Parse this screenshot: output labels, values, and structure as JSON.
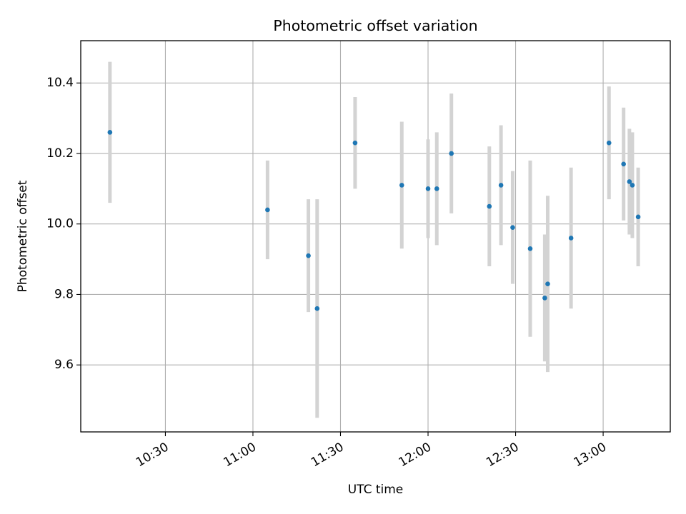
{
  "chart_data": {
    "type": "scatter",
    "title": "Photometric offset variation",
    "xlabel": "UTC time",
    "ylabel": "Photometric offset",
    "x_is_time": true,
    "xlim": [
      "10:01",
      "13:23"
    ],
    "ylim": [
      9.41,
      10.52
    ],
    "x_ticks": [
      "10:30",
      "11:00",
      "11:30",
      "12:00",
      "12:30",
      "13:00"
    ],
    "y_ticks": [
      9.6,
      9.8,
      10.0,
      10.2,
      10.4
    ],
    "y_tick_labels": [
      "9.6",
      "9.8",
      "10.0",
      "10.2",
      "10.4"
    ],
    "grid": true,
    "x_tick_rotation": "30deg",
    "marker_color": "#1f77b4",
    "errorbar_color": "#d3d3d3",
    "series": [
      {
        "points": [
          {
            "x": "10:11",
            "y": 10.26,
            "err": 0.2
          },
          {
            "x": "11:05",
            "y": 10.04,
            "err": 0.14
          },
          {
            "x": "11:19",
            "y": 9.91,
            "err": 0.16
          },
          {
            "x": "11:22",
            "y": 9.76,
            "err": 0.31
          },
          {
            "x": "11:35",
            "y": 10.23,
            "err": 0.13
          },
          {
            "x": "11:51",
            "y": 10.11,
            "err": 0.18
          },
          {
            "x": "12:00",
            "y": 10.1,
            "err": 0.14
          },
          {
            "x": "12:03",
            "y": 10.1,
            "err": 0.16
          },
          {
            "x": "12:08",
            "y": 10.2,
            "err": 0.17
          },
          {
            "x": "12:21",
            "y": 10.05,
            "err": 0.17
          },
          {
            "x": "12:25",
            "y": 10.11,
            "err": 0.17
          },
          {
            "x": "12:29",
            "y": 9.99,
            "err": 0.16
          },
          {
            "x": "12:35",
            "y": 9.93,
            "err": 0.25
          },
          {
            "x": "12:40",
            "y": 9.79,
            "err": 0.18
          },
          {
            "x": "12:41",
            "y": 9.83,
            "err": 0.25
          },
          {
            "x": "12:49",
            "y": 9.96,
            "err": 0.2
          },
          {
            "x": "13:02",
            "y": 10.23,
            "err": 0.16
          },
          {
            "x": "13:07",
            "y": 10.17,
            "err": 0.16
          },
          {
            "x": "13:09",
            "y": 10.12,
            "err": 0.15
          },
          {
            "x": "13:10",
            "y": 10.11,
            "err": 0.15
          },
          {
            "x": "13:12",
            "y": 10.02,
            "err": 0.14
          }
        ]
      }
    ]
  }
}
